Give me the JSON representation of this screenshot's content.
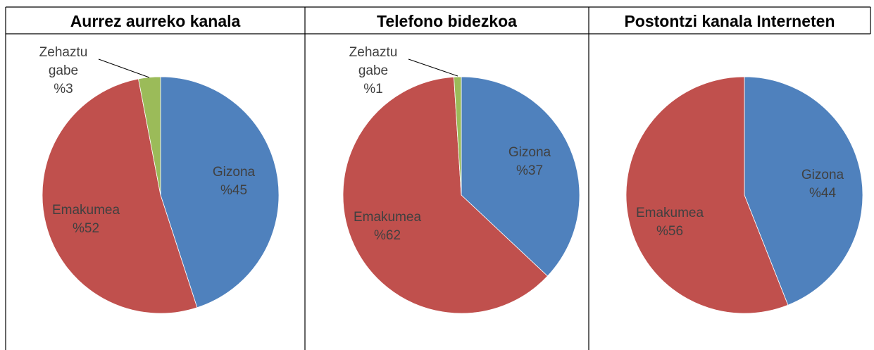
{
  "chart_data": [
    {
      "type": "pie",
      "title": "Aurrez aurreko kanala",
      "categories": [
        "Gizona",
        "Emakumea",
        "Zehaztu gabe"
      ],
      "values": [
        45,
        52,
        3
      ],
      "value_labels": [
        "%45",
        "%52",
        "%3"
      ],
      "colors": [
        "#4f81bd",
        "#c0504d",
        "#9bbb59"
      ]
    },
    {
      "type": "pie",
      "title": "Telefono bidezkoa",
      "categories": [
        "Gizona",
        "Emakumea",
        "Zehaztu gabe"
      ],
      "values": [
        37,
        62,
        1
      ],
      "value_labels": [
        "%37",
        "%62",
        "%1"
      ],
      "colors": [
        "#4f81bd",
        "#c0504d",
        "#9bbb59"
      ]
    },
    {
      "type": "pie",
      "title": "Postontzi kanala Interneten",
      "categories": [
        "Gizona",
        "Emakumea"
      ],
      "values": [
        44,
        56
      ],
      "value_labels": [
        "%44",
        "%56"
      ],
      "colors": [
        "#4f81bd",
        "#c0504d"
      ]
    }
  ]
}
